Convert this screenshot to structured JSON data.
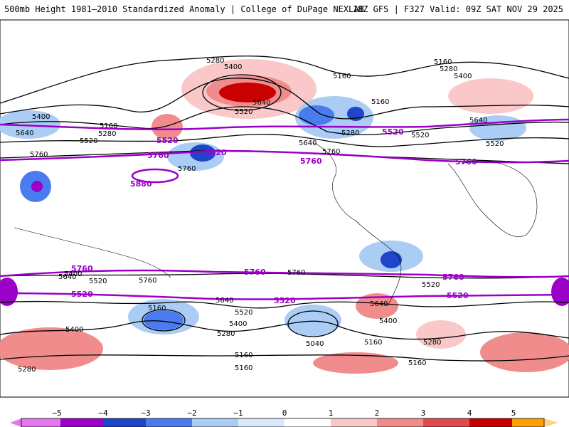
{
  "header": {
    "title": "500mb Height 1981–2010 Standardized Anomaly | College of DuPage NEXLAB",
    "run_info": "18Z GFS | F327 Valid: 09Z SAT NOV 29 2025"
  },
  "contour_labels": {
    "black": [
      "5280",
      "5400",
      "5160",
      "5280",
      "5400",
      "5160",
      "5640",
      "5520",
      "5160",
      "5400",
      "5160",
      "5280",
      "5640",
      "5520",
      "5520",
      "5280",
      "5640",
      "5760",
      "5760",
      "5520",
      "5640",
      "5760",
      "5400",
      "5520",
      "5640",
      "5760",
      "5760",
      "5640",
      "5520",
      "5160",
      "5400",
      "5280",
      "5040",
      "5160",
      "5160",
      "5160",
      "5280",
      "5400",
      "5520",
      "5640",
      "5280",
      "5400",
      "5160"
    ],
    "purple": [
      "5520",
      "5520",
      "5760",
      "5880",
      "5760",
      "5520",
      "5760",
      "5760",
      "5760",
      "5760",
      "5520",
      "5520",
      "5520"
    ]
  },
  "colorbar": {
    "ticks": [
      "−5",
      "−4",
      "−3",
      "−2",
      "−1",
      "0",
      "1",
      "2",
      "3",
      "4",
      "5"
    ],
    "colors": [
      "#e377f0",
      "#9b00c8",
      "#1f46c8",
      "#4a7cf0",
      "#aaccf5",
      "#d9e8fa",
      "#ffffff",
      "#fac8c8",
      "#f08c8c",
      "#e04a4a",
      "#c80000",
      "#ff9f00",
      "#ffd27f"
    ]
  }
}
